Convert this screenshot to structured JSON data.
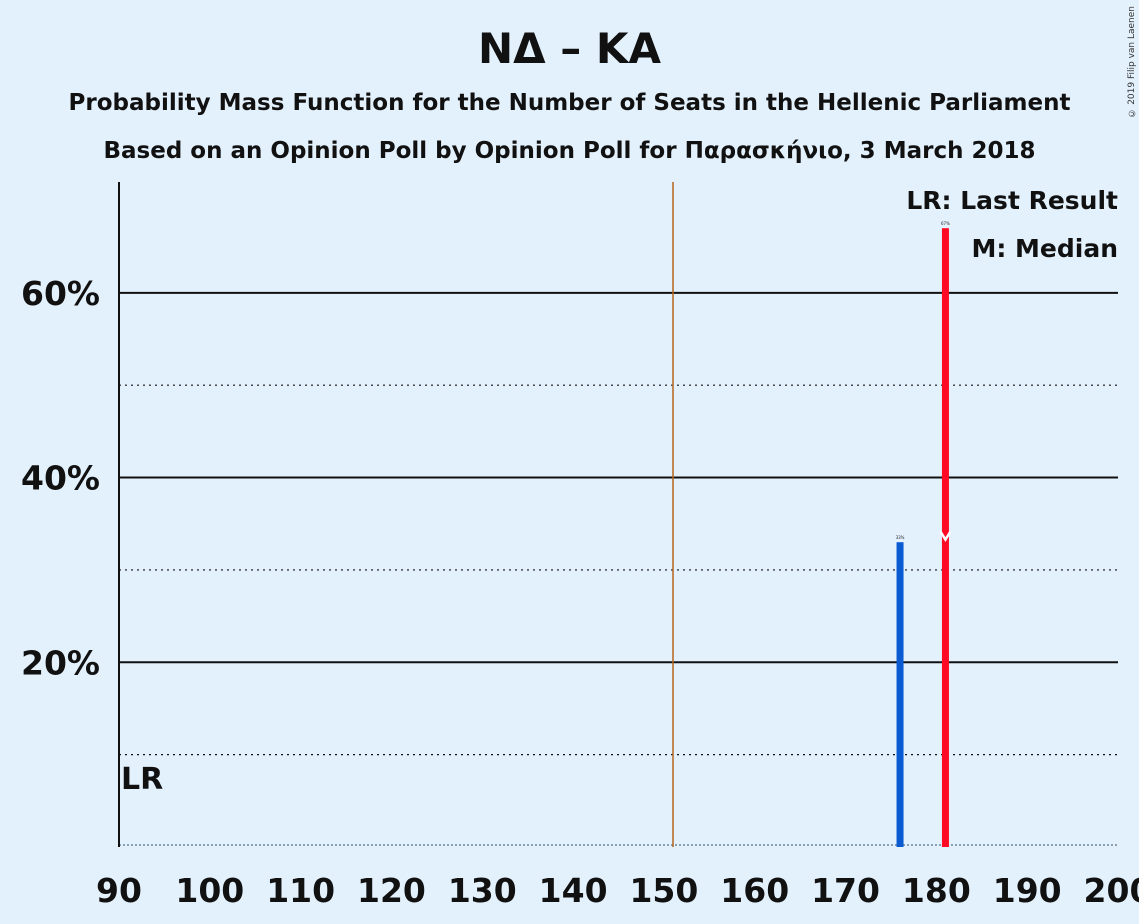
{
  "title": "ΝΔ – ΚΑ",
  "subtitle1": "Probability Mass Function for the Number of Seats in the Hellenic Parliament",
  "subtitle2": "Based on an Opinion Poll by Opinion Poll for Παρασκήνιο, 3 March 2018",
  "copyright": "© 2019 Filip van Laenen",
  "legend": {
    "last_result": "LR: Last Result",
    "median": "M: Median"
  },
  "lr_label": "LR",
  "median_marker": "M",
  "colors": {
    "background": "#e3f1fd",
    "bar_default": "#0a5ad2",
    "bar_median": "#ff0a24",
    "majority_line": "#b5651d",
    "grid": "#111111"
  },
  "chart_data": {
    "type": "bar",
    "title": "ΝΔ – ΚΑ",
    "xlabel": "",
    "ylabel": "",
    "xlim": [
      90,
      200
    ],
    "ylim": [
      0,
      72
    ],
    "x_ticks": [
      90,
      100,
      110,
      120,
      130,
      140,
      150,
      160,
      170,
      180,
      190,
      200
    ],
    "y_ticks_major": [
      20,
      40,
      60
    ],
    "y_tick_labels": [
      "20%",
      "40%",
      "60%"
    ],
    "y_ticks_minor": [
      10,
      30,
      50
    ],
    "last_result_seats": 90,
    "majority_seats": 151,
    "median_seats": 181,
    "bars": [
      {
        "seats": 176,
        "probability": 33,
        "label": "33%",
        "color": "#0a5ad2"
      },
      {
        "seats": 181,
        "probability": 67,
        "label": "67%",
        "color": "#ff0a24"
      }
    ]
  }
}
